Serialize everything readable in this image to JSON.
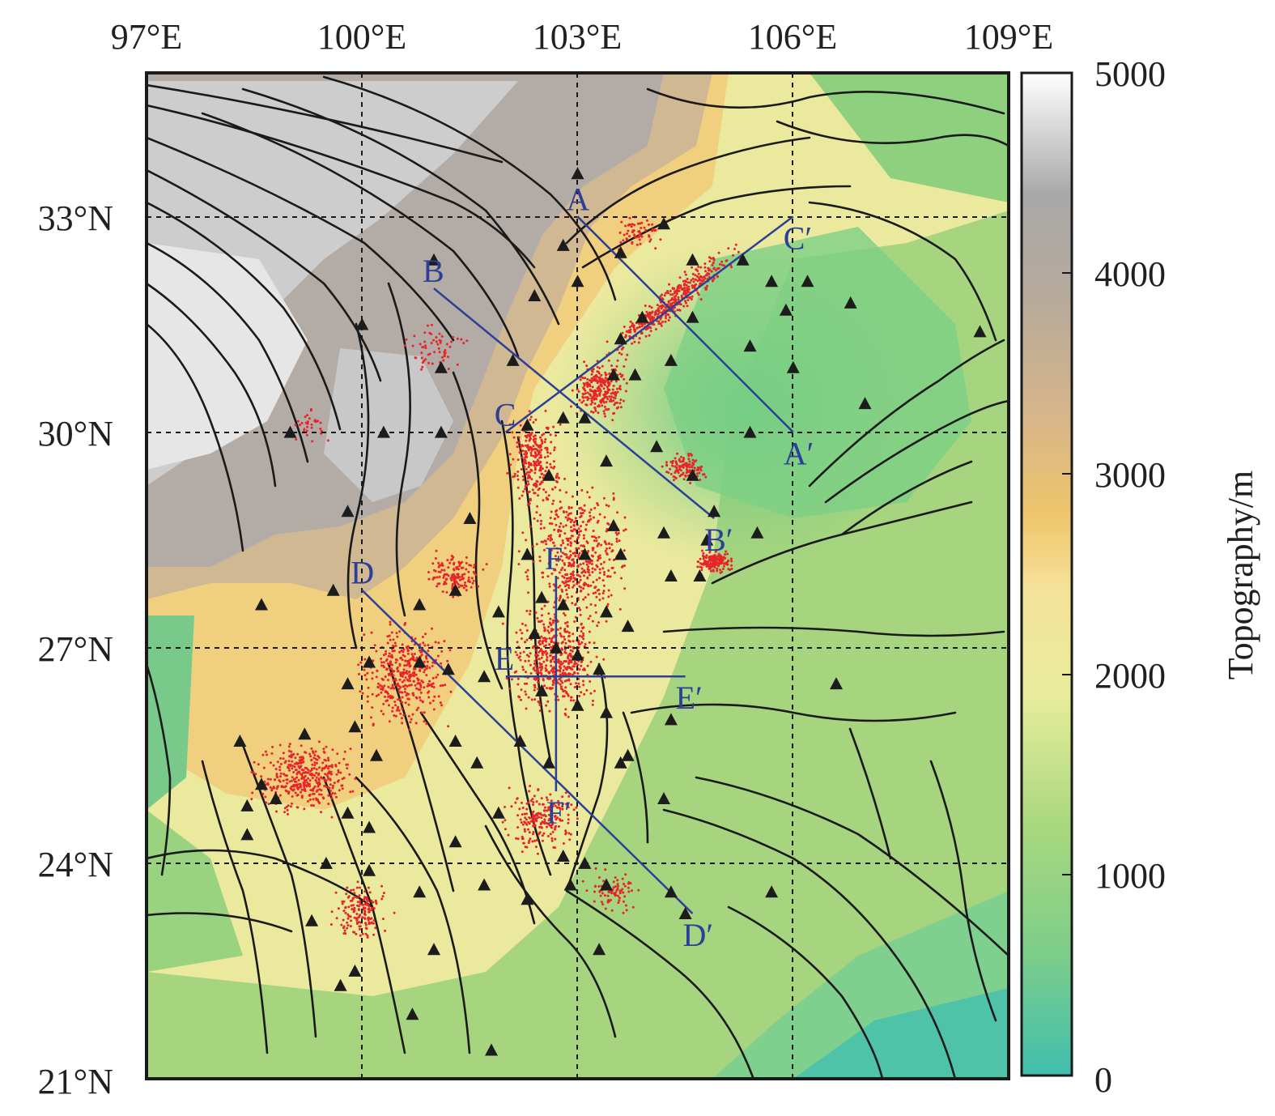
{
  "map": {
    "lon_labels": [
      "97°E",
      "100°E",
      "103°E",
      "106°E",
      "109°E"
    ],
    "lat_labels": [
      "33°N",
      "30°N",
      "27°N",
      "24°N",
      "21°N"
    ],
    "lon_range": [
      97,
      109
    ],
    "lat_range": [
      21,
      35
    ],
    "grid": "dashed",
    "profiles": [
      {
        "start": "A",
        "end": "A′",
        "from": [
          103.0,
          33.0
        ],
        "to": [
          106.0,
          30.0
        ]
      },
      {
        "start": "B",
        "end": "B′",
        "from": [
          101.0,
          32.0
        ],
        "to": [
          104.9,
          28.8
        ]
      },
      {
        "start": "C",
        "end": "C′",
        "from": [
          102.0,
          30.0
        ],
        "to": [
          106.0,
          33.0
        ]
      },
      {
        "start": "D",
        "end": "D′",
        "from": [
          100.0,
          27.8
        ],
        "to": [
          104.6,
          23.3
        ]
      },
      {
        "start": "E",
        "end": "E′",
        "from": [
          102.0,
          26.6
        ],
        "to": [
          104.5,
          26.6
        ]
      },
      {
        "start": "F",
        "end": "F′",
        "from": [
          102.7,
          28.0
        ],
        "to": [
          102.7,
          25.0
        ]
      }
    ],
    "symbols": {
      "earthquakes": "red dots",
      "stations": "black triangles",
      "faults": "black lines"
    }
  },
  "colorbar": {
    "title": "Topography/m",
    "ticks": [
      "5000",
      "4000",
      "3000",
      "2000",
      "1000",
      "0"
    ],
    "range": [
      0,
      5000
    ]
  },
  "colors": {
    "quake": "#e8242b",
    "station": "#1c1c1c",
    "fault": "#1a1a1a",
    "profile": "#2d3f96",
    "low": "#3fbfae",
    "green": "#9fd67c",
    "yellow": "#f0e89c",
    "orange": "#eec06a",
    "tan": "#ccb193",
    "grey": "#aaaaaa",
    "white": "#ffffff"
  }
}
